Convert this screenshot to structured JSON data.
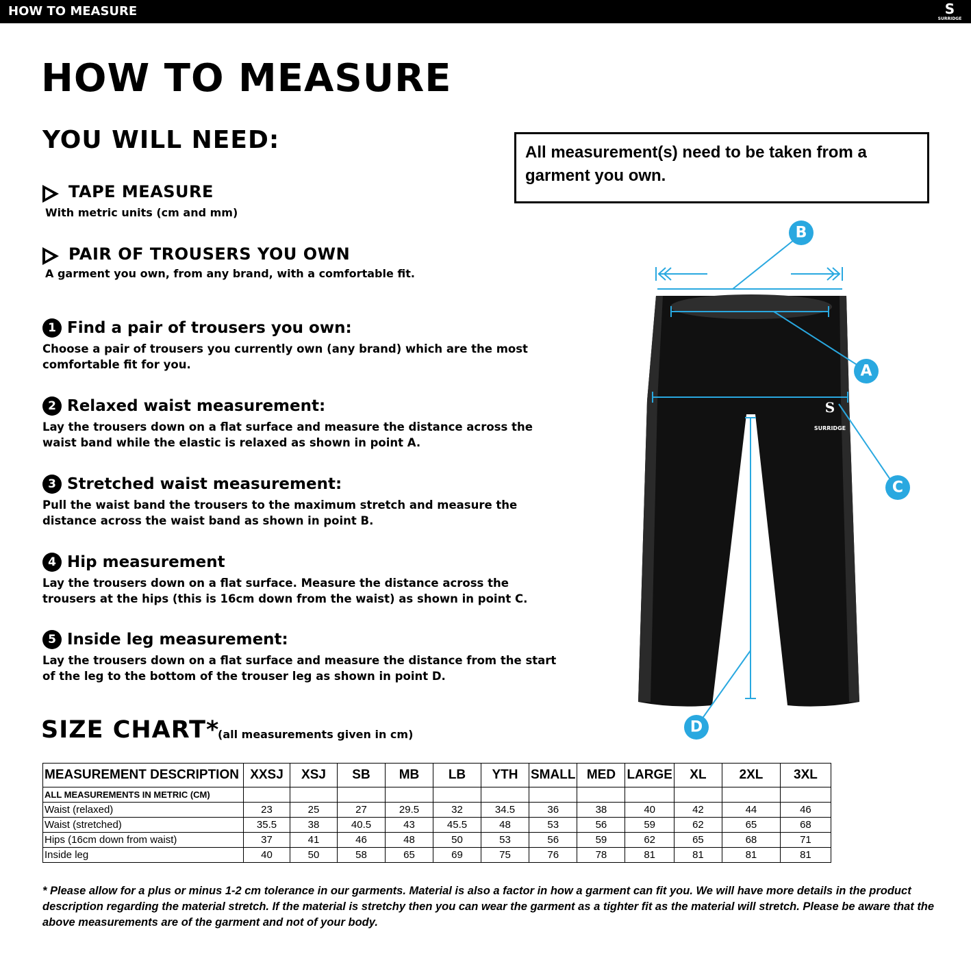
{
  "header": {
    "bar_title": "HOW TO MEASURE",
    "brand": "SURRIDGE"
  },
  "title": "HOW TO MEASURE",
  "you_will_need": {
    "heading": "YOU WILL NEED:",
    "items": [
      {
        "title": "TAPE MEASURE",
        "text": "With metric units (cm and mm)"
      },
      {
        "title": "PAIR OF TROUSERS YOU OWN",
        "text": "A garment you own, from any brand, with a comfortable fit."
      }
    ]
  },
  "notice": "All measurement(s) need to be taken from a garment you own.",
  "steps": [
    {
      "number": "1",
      "title": "Find a pair of trousers you own:",
      "text": "Choose a pair of trousers you currently own (any brand) which are the most comfortable fit for you."
    },
    {
      "number": "2",
      "title": "Relaxed waist measurement:",
      "text": "Lay the trousers down on a flat surface and measure the distance across the waist band while the elastic is relaxed as shown in point A."
    },
    {
      "number": "3",
      "title": "Stretched waist measurement:",
      "text": "Pull the waist band the trousers to the maximum stretch and measure the distance across the waist band as shown in point B."
    },
    {
      "number": "4",
      "title": "Hip measurement",
      "text": "Lay the trousers down on a flat surface. Measure the distance across the trousers at the hips (this is 16cm down from the waist) as shown in point C."
    },
    {
      "number": "5",
      "title": "Inside leg measurement:",
      "text": "Lay the trousers down on a flat surface and measure the distance from the start of the leg to the bottom of the trouser leg as shown in point D."
    }
  ],
  "diagram": {
    "labels": [
      "B",
      "A",
      "C",
      "D"
    ],
    "brand": "SURRIDGE"
  },
  "size_chart": {
    "heading": "SIZE CHART*",
    "note": "(all measurements given in cm)",
    "table": {
      "header": [
        "MEASUREMENT DESCRIPTION",
        "XXSJ",
        "XSJ",
        "SB",
        "MB",
        "LB",
        "YTH",
        "SMALL",
        "MED",
        "LARGE",
        "XL",
        "2XL",
        "3XL"
      ],
      "subheader": "ALL MEASUREMENTS IN METRIC (CM)",
      "rows": [
        [
          "Waist (relaxed)",
          23,
          25,
          27,
          29.5,
          32,
          34.5,
          36,
          38,
          40,
          42,
          44,
          46
        ],
        [
          "Waist (stretched)",
          35.5,
          38,
          40.5,
          43,
          45.5,
          48,
          53,
          56,
          59,
          62,
          65,
          68
        ],
        [
          "Hips (16cm down from waist)",
          37,
          41,
          46,
          48,
          50,
          53,
          56,
          59,
          62,
          65,
          68,
          71
        ],
        [
          "Inside leg",
          40,
          50,
          58,
          65,
          69,
          75,
          76,
          78,
          81,
          81,
          81,
          81
        ]
      ]
    }
  },
  "footnote": "* Please allow for a plus or minus 1-2 cm tolerance in our garments. Material is also a factor in how a garment can fit you. We will have more details in the product description regarding the material stretch.  If the material is stretchy then you can wear the garment as a tighter fit as the material will stretch.  Please be aware that the above measurements are of the garment and not of your body."
}
